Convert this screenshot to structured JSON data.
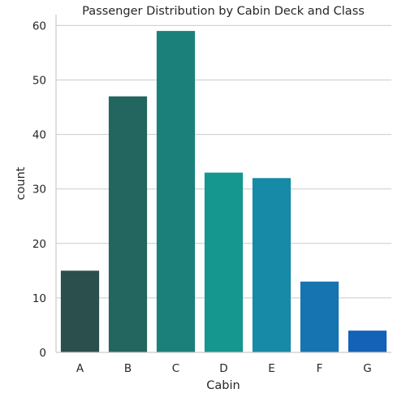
{
  "chart_data": {
    "type": "bar",
    "title": "Passenger Distribution by Cabin Deck and Class",
    "xlabel": "Cabin",
    "ylabel": "count",
    "categories": [
      "A",
      "B",
      "C",
      "D",
      "E",
      "F",
      "G"
    ],
    "values": [
      15,
      47,
      59,
      33,
      32,
      13,
      4
    ],
    "colors": [
      "#2a4f4d",
      "#23655f",
      "#1b807a",
      "#15968e",
      "#168aa7",
      "#1674b0",
      "#1461b8"
    ],
    "ylim": [
      0,
      62
    ],
    "yticks": [
      0,
      10,
      20,
      30,
      40,
      50,
      60
    ],
    "grid": true,
    "legend": "none"
  }
}
